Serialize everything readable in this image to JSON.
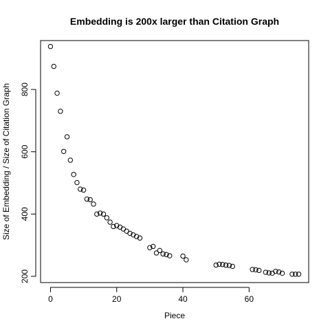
{
  "chart_data": {
    "type": "scatter",
    "title": "Embedding is 200x larger than Citation Graph",
    "xlabel": "Piece",
    "ylabel": "Size of Embedding / Size of Citation Graph",
    "xlim": [
      -3,
      78
    ],
    "ylim": [
      180,
      957
    ],
    "xticks": [
      0,
      20,
      40,
      60
    ],
    "yticks": [
      200,
      400,
      600,
      800
    ],
    "marker": "open-circle",
    "grid": false,
    "points": [
      {
        "x": 0,
        "y": 938
      },
      {
        "x": 1,
        "y": 874
      },
      {
        "x": 2,
        "y": 788
      },
      {
        "x": 3,
        "y": 730
      },
      {
        "x": 4,
        "y": 601
      },
      {
        "x": 5,
        "y": 648
      },
      {
        "x": 6,
        "y": 573
      },
      {
        "x": 7,
        "y": 527
      },
      {
        "x": 8,
        "y": 501
      },
      {
        "x": 9,
        "y": 480
      },
      {
        "x": 10,
        "y": 477
      },
      {
        "x": 11,
        "y": 448
      },
      {
        "x": 12,
        "y": 446
      },
      {
        "x": 13,
        "y": 432
      },
      {
        "x": 14,
        "y": 400
      },
      {
        "x": 15,
        "y": 403
      },
      {
        "x": 16,
        "y": 400
      },
      {
        "x": 17,
        "y": 388
      },
      {
        "x": 18,
        "y": 374
      },
      {
        "x": 19,
        "y": 360
      },
      {
        "x": 20,
        "y": 363
      },
      {
        "x": 21,
        "y": 358
      },
      {
        "x": 22,
        "y": 352
      },
      {
        "x": 23,
        "y": 345
      },
      {
        "x": 24,
        "y": 338
      },
      {
        "x": 25,
        "y": 333
      },
      {
        "x": 26,
        "y": 328
      },
      {
        "x": 27,
        "y": 323
      },
      {
        "x": 30,
        "y": 292
      },
      {
        "x": 31,
        "y": 296
      },
      {
        "x": 32,
        "y": 275
      },
      {
        "x": 33,
        "y": 283
      },
      {
        "x": 34,
        "y": 272
      },
      {
        "x": 35,
        "y": 270
      },
      {
        "x": 36,
        "y": 266
      },
      {
        "x": 40,
        "y": 265
      },
      {
        "x": 41,
        "y": 253
      },
      {
        "x": 50,
        "y": 236
      },
      {
        "x": 51,
        "y": 239
      },
      {
        "x": 52,
        "y": 238
      },
      {
        "x": 53,
        "y": 236
      },
      {
        "x": 54,
        "y": 235
      },
      {
        "x": 55,
        "y": 232
      },
      {
        "x": 61,
        "y": 222
      },
      {
        "x": 62,
        "y": 221
      },
      {
        "x": 63,
        "y": 219
      },
      {
        "x": 65,
        "y": 213
      },
      {
        "x": 66,
        "y": 211
      },
      {
        "x": 67,
        "y": 210
      },
      {
        "x": 68,
        "y": 216
      },
      {
        "x": 69,
        "y": 214
      },
      {
        "x": 70,
        "y": 210
      },
      {
        "x": 73,
        "y": 207
      },
      {
        "x": 74,
        "y": 207
      },
      {
        "x": 75,
        "y": 207
      }
    ]
  }
}
